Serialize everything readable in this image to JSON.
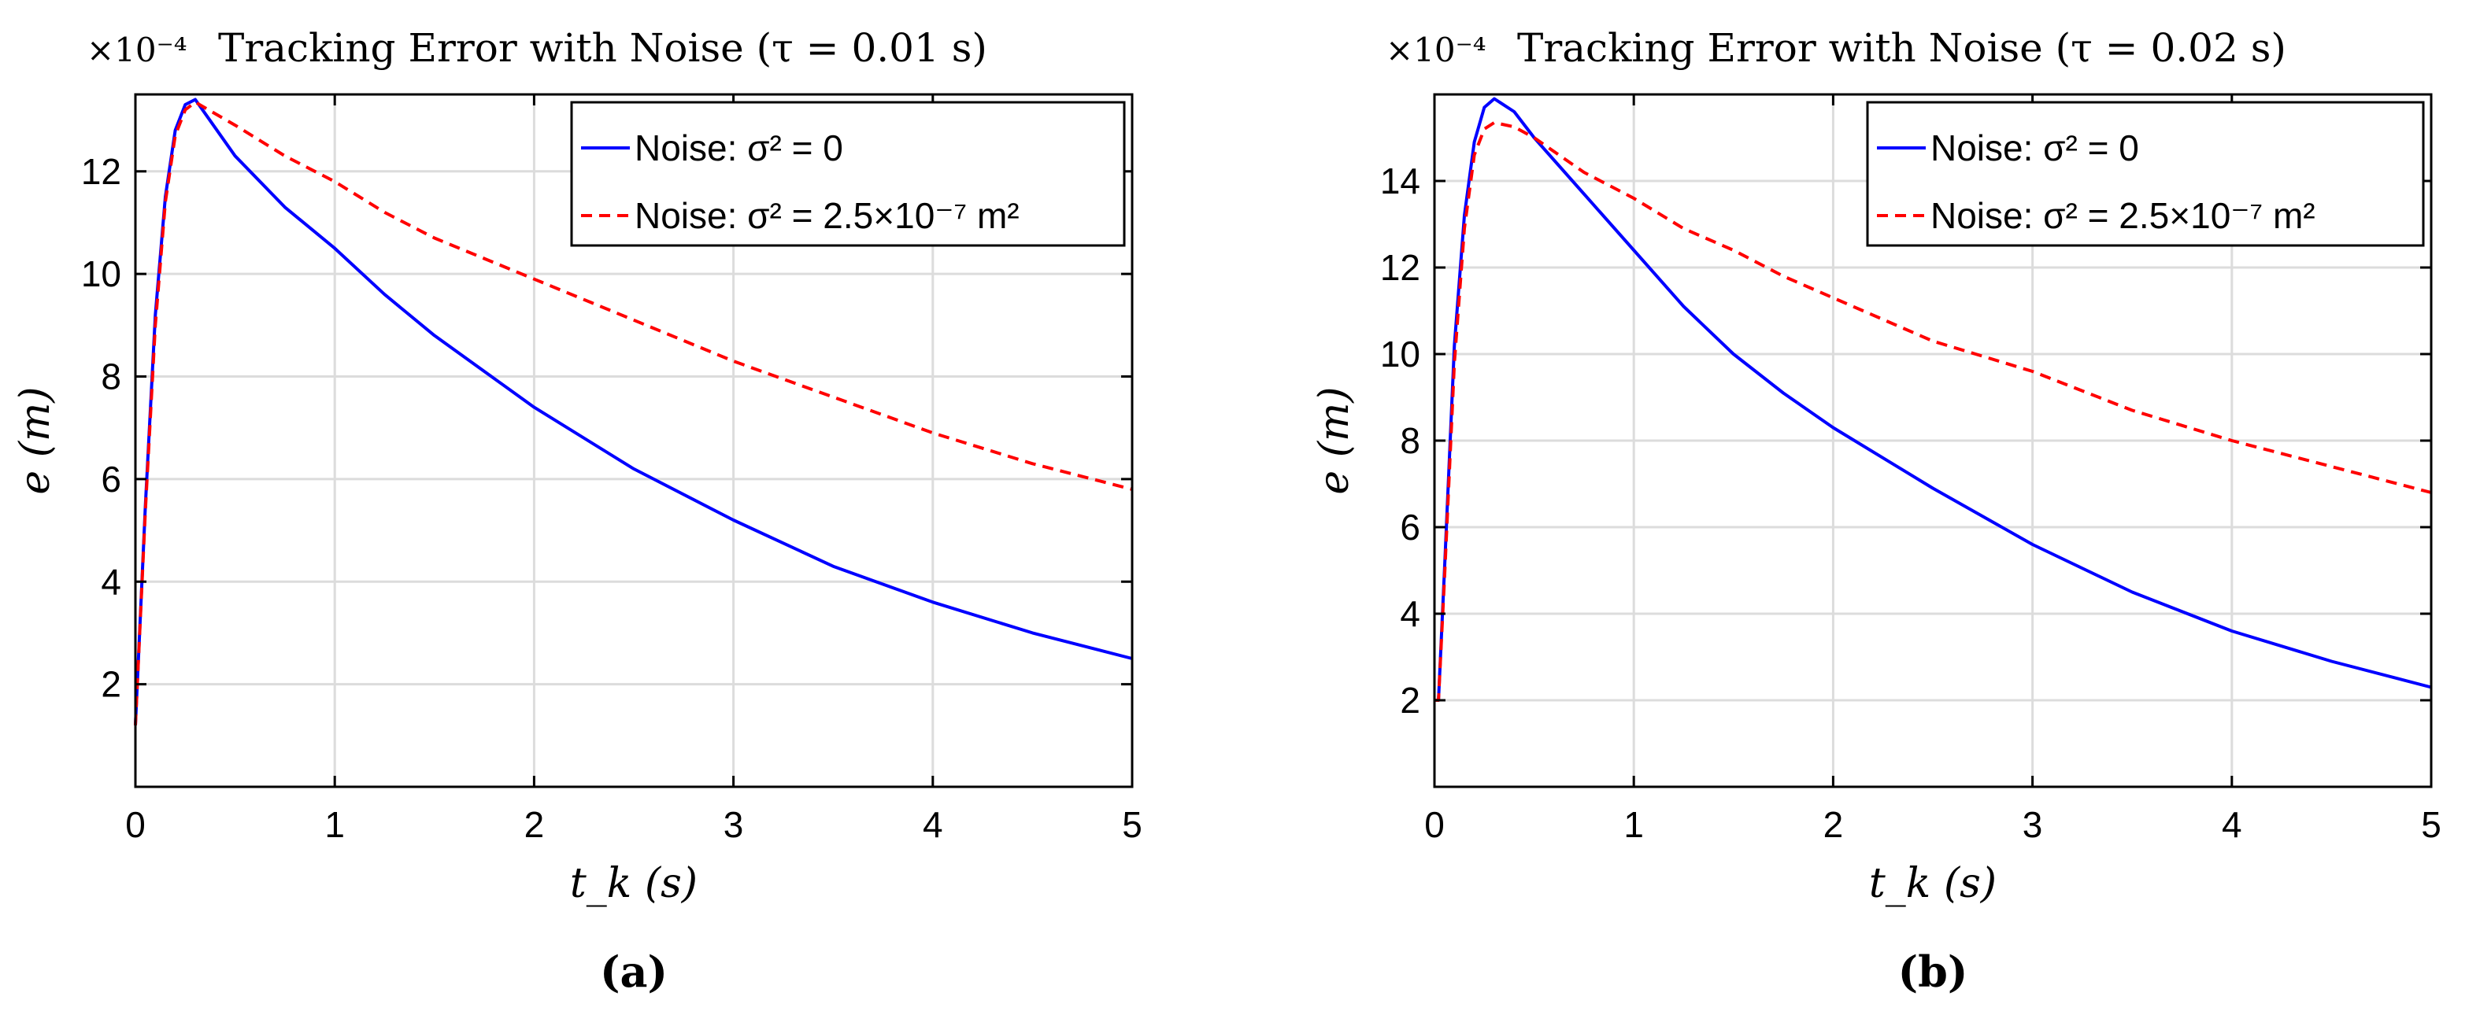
{
  "chart_data": [
    {
      "type": "line",
      "panel_label": "(a)",
      "title": "Tracking Error with Noise (τ = 0.01 s)",
      "exponent_label": "×10⁻⁴",
      "xlabel": "t_k (s)",
      "ylabel": "e (m)",
      "xlim": [
        0,
        5
      ],
      "ylim": [
        0,
        13.5
      ],
      "xticks": [
        0,
        1,
        2,
        3,
        4,
        5
      ],
      "yticks": [
        2,
        4,
        6,
        8,
        10,
        12
      ],
      "grid": true,
      "legend_position": "top-right",
      "series": [
        {
          "name": "Noise: σ² = 0",
          "color": "#0000ff",
          "style": "solid",
          "x": [
            0,
            0.05,
            0.1,
            0.15,
            0.2,
            0.25,
            0.3,
            0.5,
            0.75,
            1,
            1.25,
            1.5,
            1.75,
            2,
            2.5,
            3,
            3.5,
            4,
            4.5,
            5
          ],
          "y": [
            1.2,
            5.5,
            9.2,
            11.5,
            12.8,
            13.3,
            13.4,
            12.3,
            11.3,
            10.5,
            9.6,
            8.8,
            8.1,
            7.4,
            6.2,
            5.2,
            4.3,
            3.6,
            3.0,
            2.5
          ]
        },
        {
          "name": "Noise: σ² = 2.5×10⁻⁷ m²",
          "color": "#ff0000",
          "style": "dashed",
          "x": [
            0,
            0.05,
            0.1,
            0.15,
            0.2,
            0.25,
            0.3,
            0.5,
            0.75,
            1,
            1.25,
            1.5,
            1.75,
            2,
            2.5,
            3,
            3.5,
            4,
            4.5,
            5
          ],
          "y": [
            1.2,
            5.4,
            9.0,
            11.4,
            12.7,
            13.2,
            13.35,
            12.9,
            12.3,
            11.8,
            11.2,
            10.7,
            10.3,
            9.9,
            9.1,
            8.3,
            7.6,
            6.9,
            6.3,
            5.8
          ]
        }
      ]
    },
    {
      "type": "line",
      "panel_label": "(b)",
      "title": "Tracking Error with Noise (τ = 0.02 s)",
      "exponent_label": "×10⁻⁴",
      "xlabel": "t_k (s)",
      "ylabel": "e (m)",
      "xlim": [
        0,
        5
      ],
      "ylim": [
        0,
        16
      ],
      "xticks": [
        0,
        1,
        2,
        3,
        4,
        5
      ],
      "yticks": [
        2,
        4,
        6,
        8,
        10,
        12,
        14
      ],
      "grid": true,
      "legend_position": "top-right",
      "series": [
        {
          "name": "Noise: σ² = 0",
          "color": "#0000ff",
          "style": "solid",
          "x": [
            0,
            0.02,
            0.05,
            0.1,
            0.15,
            0.2,
            0.25,
            0.3,
            0.4,
            0.5,
            0.75,
            1,
            1.25,
            1.5,
            1.75,
            2,
            2.5,
            3,
            3.5,
            4,
            4.5,
            5
          ],
          "y": [
            2.0,
            2.0,
            5.0,
            10.2,
            13.2,
            14.9,
            15.7,
            15.9,
            15.6,
            15.0,
            13.7,
            12.4,
            11.1,
            10.0,
            9.1,
            8.3,
            6.9,
            5.6,
            4.5,
            3.6,
            2.9,
            2.3
          ]
        },
        {
          "name": "Noise: σ² = 2.5×10⁻⁷ m²",
          "color": "#ff0000",
          "style": "dashed",
          "x": [
            0,
            0.02,
            0.05,
            0.1,
            0.15,
            0.2,
            0.25,
            0.3,
            0.4,
            0.5,
            0.75,
            1,
            1.25,
            1.5,
            1.75,
            2,
            2.5,
            3,
            3.5,
            4,
            4.5,
            5
          ],
          "y": [
            2.0,
            2.0,
            4.8,
            9.8,
            12.9,
            14.6,
            15.2,
            15.35,
            15.25,
            15.0,
            14.2,
            13.6,
            12.9,
            12.4,
            11.8,
            11.3,
            10.3,
            9.6,
            8.7,
            8.0,
            7.4,
            6.8
          ]
        }
      ]
    }
  ]
}
